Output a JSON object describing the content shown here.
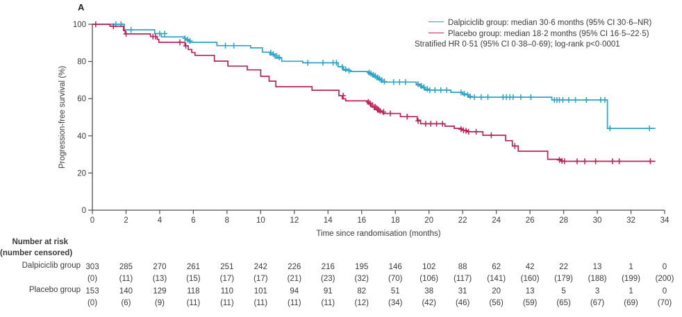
{
  "panel_label": "A",
  "colors": {
    "dalpiciclib": "#2CA3C6",
    "placebo": "#BC2155",
    "axis": "#4D4D4D",
    "text": "#3A3A3A"
  },
  "legend": {
    "dalpiciclib": "Dalpiciclib group: median 30·6 months (95% CI 30·6–NR)",
    "placebo": "Placebo group: median 18·2 months (95% CI 16·5–22·5)",
    "stats": "Stratified HR 0·51 (95% CI 0·38–0·69); log-rank p<0·0001"
  },
  "chart_data": {
    "type": "line",
    "subtype": "kaplan-meier-step",
    "title": "A",
    "xlabel": "Time since randomisation (months)",
    "ylabel": "Progression-free survival (%)",
    "xlim": [
      0,
      34
    ],
    "ylim": [
      0,
      100
    ],
    "x_ticks": [
      0,
      2,
      4,
      6,
      8,
      10,
      12,
      14,
      16,
      18,
      20,
      22,
      24,
      26,
      28,
      30,
      32,
      34
    ],
    "y_ticks": [
      0,
      20,
      40,
      60,
      80,
      100
    ],
    "grid": false,
    "legend_position": "top-right",
    "series": [
      {
        "name": "Dalpiciclib group",
        "color": "#2CA3C6",
        "median_months": "30·6",
        "ci_95": "30·6–NR",
        "steps": [
          [
            0,
            100
          ],
          [
            1.9,
            100
          ],
          [
            1.9,
            97
          ],
          [
            3.7,
            97
          ],
          [
            3.7,
            95
          ],
          [
            4.1,
            95
          ],
          [
            4.1,
            93.2
          ],
          [
            5.5,
            93.2
          ],
          [
            5.5,
            91.5
          ],
          [
            5.75,
            91.5
          ],
          [
            5.75,
            90.3
          ],
          [
            7.4,
            90.3
          ],
          [
            7.4,
            88.5
          ],
          [
            9.4,
            88.5
          ],
          [
            9.4,
            87.3
          ],
          [
            10.1,
            87.3
          ],
          [
            10.1,
            85
          ],
          [
            10.55,
            85
          ],
          [
            10.55,
            83.6
          ],
          [
            10.85,
            83.6
          ],
          [
            10.85,
            81.8
          ],
          [
            11.25,
            81.8
          ],
          [
            11.25,
            80.1
          ],
          [
            12.5,
            80.1
          ],
          [
            12.5,
            79.3
          ],
          [
            14.6,
            79.3
          ],
          [
            14.6,
            77.2
          ],
          [
            14.9,
            77.2
          ],
          [
            14.9,
            75.3
          ],
          [
            15.35,
            75.3
          ],
          [
            15.35,
            74.6
          ],
          [
            16.4,
            74.6
          ],
          [
            16.4,
            73.2
          ],
          [
            16.65,
            73.2
          ],
          [
            16.65,
            71.8
          ],
          [
            16.9,
            71.8
          ],
          [
            16.9,
            70.3
          ],
          [
            17.15,
            70.3
          ],
          [
            17.15,
            68.9
          ],
          [
            19.25,
            68.9
          ],
          [
            19.25,
            67.4
          ],
          [
            19.5,
            67.4
          ],
          [
            19.5,
            65.9
          ],
          [
            19.75,
            65.9
          ],
          [
            19.75,
            64.6
          ],
          [
            21.3,
            64.6
          ],
          [
            21.3,
            63.4
          ],
          [
            22.0,
            63.4
          ],
          [
            22.0,
            62.1
          ],
          [
            22.35,
            62.1
          ],
          [
            22.35,
            60.8
          ],
          [
            27.3,
            60.8
          ],
          [
            27.3,
            59.3
          ],
          [
            30.6,
            59.3
          ],
          [
            30.6,
            44
          ],
          [
            33.45,
            44
          ]
        ],
        "censor_marks": [
          [
            1.4,
            100
          ],
          [
            1.7,
            100
          ],
          [
            2.3,
            97
          ],
          [
            4.0,
            95
          ],
          [
            4.3,
            95
          ],
          [
            5.5,
            92.4
          ],
          [
            5.65,
            91.8
          ],
          [
            5.8,
            91
          ],
          [
            7.9,
            88.5
          ],
          [
            8.4,
            88.5
          ],
          [
            10.6,
            84.8
          ],
          [
            10.75,
            84
          ],
          [
            10.95,
            83
          ],
          [
            11.1,
            82.2
          ],
          [
            12.8,
            79.3
          ],
          [
            13.7,
            79.3
          ],
          [
            14.3,
            79.3
          ],
          [
            14.5,
            79.3
          ],
          [
            14.85,
            77
          ],
          [
            15.05,
            75.8
          ],
          [
            15.25,
            75
          ],
          [
            16.45,
            74
          ],
          [
            16.55,
            73.5
          ],
          [
            16.7,
            72.8
          ],
          [
            16.8,
            72.2
          ],
          [
            16.95,
            71.4
          ],
          [
            17.05,
            70.8
          ],
          [
            17.2,
            70
          ],
          [
            17.35,
            69.2
          ],
          [
            17.9,
            68.9
          ],
          [
            18.25,
            68.9
          ],
          [
            18.6,
            68.9
          ],
          [
            19.35,
            67.8
          ],
          [
            19.55,
            66.8
          ],
          [
            19.7,
            66.2
          ],
          [
            19.9,
            65.2
          ],
          [
            20.05,
            64.6
          ],
          [
            20.35,
            64.6
          ],
          [
            20.7,
            64.6
          ],
          [
            21.05,
            64.6
          ],
          [
            21.9,
            63.4
          ],
          [
            22.1,
            62.6
          ],
          [
            22.3,
            62
          ],
          [
            22.45,
            61.2
          ],
          [
            22.7,
            60.8
          ],
          [
            23.1,
            60.8
          ],
          [
            23.5,
            60.8
          ],
          [
            24.4,
            60.8
          ],
          [
            24.6,
            60.8
          ],
          [
            24.8,
            60.8
          ],
          [
            25.0,
            60.8
          ],
          [
            25.45,
            60.8
          ],
          [
            26.05,
            60.8
          ],
          [
            27.45,
            59.3
          ],
          [
            27.6,
            59.3
          ],
          [
            27.75,
            59.3
          ],
          [
            27.95,
            59.3
          ],
          [
            28.3,
            59.3
          ],
          [
            28.7,
            59.3
          ],
          [
            29.35,
            59.3
          ],
          [
            30.2,
            59.3
          ],
          [
            30.45,
            59.3
          ],
          [
            30.75,
            44
          ],
          [
            33.1,
            44
          ]
        ]
      },
      {
        "name": "Placebo group",
        "color": "#BC2155",
        "median_months": "18·2",
        "ci_95": "16·5–22·5",
        "steps": [
          [
            0,
            100
          ],
          [
            1.05,
            100
          ],
          [
            1.05,
            98.9
          ],
          [
            1.85,
            98.9
          ],
          [
            1.85,
            96.6
          ],
          [
            1.95,
            96.6
          ],
          [
            1.95,
            94.8
          ],
          [
            3.45,
            94.8
          ],
          [
            3.45,
            93.4
          ],
          [
            3.85,
            93.4
          ],
          [
            3.85,
            91.9
          ],
          [
            3.95,
            91.9
          ],
          [
            3.95,
            90.3
          ],
          [
            5.5,
            90.3
          ],
          [
            5.5,
            88.4
          ],
          [
            5.7,
            88.4
          ],
          [
            5.7,
            86.4
          ],
          [
            5.9,
            86.4
          ],
          [
            5.9,
            84.8
          ],
          [
            6.1,
            84.8
          ],
          [
            6.1,
            83.3
          ],
          [
            7.25,
            83.3
          ],
          [
            7.25,
            80.2
          ],
          [
            8.05,
            80.2
          ],
          [
            8.05,
            77.5
          ],
          [
            9.2,
            77.5
          ],
          [
            9.2,
            75.5
          ],
          [
            10.0,
            75.5
          ],
          [
            10.0,
            72
          ],
          [
            10.5,
            72
          ],
          [
            10.5,
            69.4
          ],
          [
            10.9,
            69.4
          ],
          [
            10.9,
            66.4
          ],
          [
            13.05,
            66.4
          ],
          [
            13.05,
            64.5
          ],
          [
            14.65,
            64.5
          ],
          [
            14.65,
            61.6
          ],
          [
            14.85,
            61.6
          ],
          [
            14.85,
            59.9
          ],
          [
            15.05,
            59.9
          ],
          [
            15.05,
            58.8
          ],
          [
            16.35,
            58.8
          ],
          [
            16.35,
            57.2
          ],
          [
            16.55,
            57.2
          ],
          [
            16.55,
            55.6
          ],
          [
            16.75,
            55.6
          ],
          [
            16.75,
            54.1
          ],
          [
            16.95,
            54.1
          ],
          [
            16.95,
            52.8
          ],
          [
            17.25,
            52.8
          ],
          [
            17.25,
            52
          ],
          [
            18.3,
            52
          ],
          [
            18.3,
            50.3
          ],
          [
            19.3,
            50.3
          ],
          [
            19.3,
            48.4
          ],
          [
            19.5,
            48.4
          ],
          [
            19.5,
            46.5
          ],
          [
            20.95,
            46.5
          ],
          [
            20.95,
            45.2
          ],
          [
            21.5,
            45.2
          ],
          [
            21.5,
            44
          ],
          [
            21.95,
            44
          ],
          [
            21.95,
            43
          ],
          [
            22.25,
            43
          ],
          [
            22.25,
            42.2
          ],
          [
            23.2,
            42.2
          ],
          [
            23.2,
            40.3
          ],
          [
            24.55,
            40.3
          ],
          [
            24.55,
            37.4
          ],
          [
            24.95,
            37.4
          ],
          [
            24.95,
            34.5
          ],
          [
            25.3,
            34.5
          ],
          [
            25.3,
            31.7
          ],
          [
            27.05,
            31.7
          ],
          [
            27.05,
            27.4
          ],
          [
            27.85,
            27.4
          ],
          [
            27.85,
            26.3
          ],
          [
            33.45,
            26.3
          ]
        ],
        "censor_marks": [
          [
            0.2,
            100
          ],
          [
            1.25,
            98.9
          ],
          [
            2.0,
            94.8
          ],
          [
            3.6,
            93.4
          ],
          [
            3.75,
            93.4
          ],
          [
            5.2,
            90.3
          ],
          [
            5.55,
            88.4
          ],
          [
            14.9,
            61.6
          ],
          [
            16.4,
            58.2
          ],
          [
            16.5,
            57.5
          ],
          [
            16.65,
            56.5
          ],
          [
            16.8,
            55.6
          ],
          [
            16.9,
            54.8
          ],
          [
            17.0,
            54.1
          ],
          [
            17.1,
            53.4
          ],
          [
            17.3,
            52.8
          ],
          [
            17.7,
            52
          ],
          [
            18.7,
            50.3
          ],
          [
            19.35,
            48
          ],
          [
            19.8,
            46.5
          ],
          [
            20.1,
            46.5
          ],
          [
            20.45,
            46.5
          ],
          [
            20.8,
            46.5
          ],
          [
            21.9,
            43.6
          ],
          [
            22.05,
            43
          ],
          [
            22.2,
            42.7
          ],
          [
            22.35,
            42.2
          ],
          [
            22.8,
            42.2
          ],
          [
            23.7,
            40.3
          ],
          [
            25.1,
            34.5
          ],
          [
            27.75,
            27
          ],
          [
            27.9,
            26.5
          ],
          [
            28.05,
            26.3
          ],
          [
            28.8,
            26.3
          ],
          [
            29.25,
            26.3
          ],
          [
            29.9,
            26.3
          ],
          [
            30.9,
            26.3
          ],
          [
            31.3,
            26.3
          ],
          [
            33.15,
            26.3
          ]
        ]
      }
    ]
  },
  "number_at_risk": {
    "header_line1": "Number at risk",
    "header_line2": "(number censored)",
    "times": [
      0,
      2,
      4,
      6,
      8,
      10,
      12,
      14,
      16,
      18,
      20,
      22,
      24,
      26,
      28,
      30,
      32,
      34
    ],
    "rows": [
      {
        "label": "Dalpiciclib group",
        "at_risk": [
          "303",
          "285",
          "270",
          "261",
          "251",
          "242",
          "226",
          "216",
          "195",
          "146",
          "102",
          "88",
          "62",
          "42",
          "22",
          "13",
          "1",
          "0"
        ],
        "censored": [
          "(0)",
          "(11)",
          "(13)",
          "(15)",
          "(17)",
          "(17)",
          "(21)",
          "(23)",
          "(32)",
          "(70)",
          "(106)",
          "(117)",
          "(141)",
          "(160)",
          "(179)",
          "(188)",
          "(199)",
          "(200)"
        ]
      },
      {
        "label": "Placebo group",
        "at_risk": [
          "153",
          "140",
          "129",
          "118",
          "110",
          "101",
          "94",
          "91",
          "82",
          "51",
          "38",
          "31",
          "20",
          "13",
          "5",
          "3",
          "1",
          "0"
        ],
        "censored": [
          "(0)",
          "(6)",
          "(9)",
          "(11)",
          "(11)",
          "(11)",
          "(11)",
          "(11)",
          "(12)",
          "(34)",
          "(42)",
          "(46)",
          "(56)",
          "(59)",
          "(65)",
          "(67)",
          "(69)",
          "(70)"
        ]
      }
    ]
  }
}
